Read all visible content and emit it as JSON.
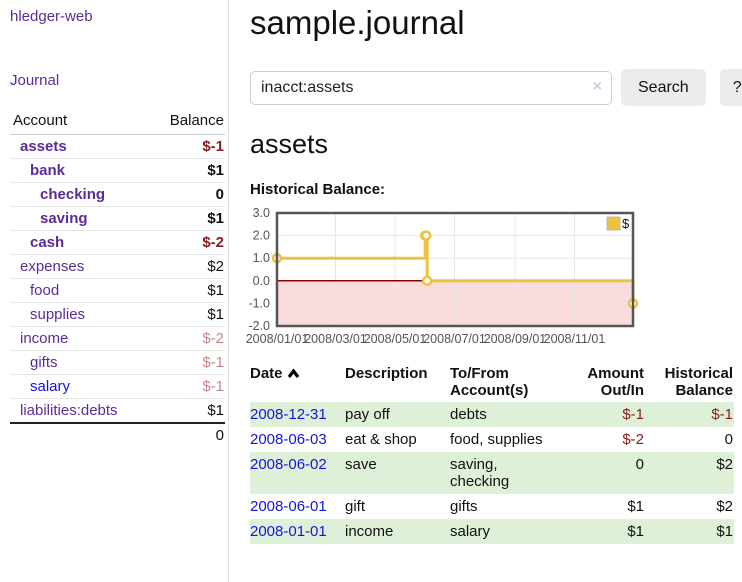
{
  "colors": {
    "purple_link": "#5b2c98",
    "blue_link": "#1414dd",
    "negative": "#8b1a1a",
    "negative_faded": "#c4848a",
    "row_stripe_green": "#dff0d8",
    "chart_line": "#edc240",
    "chart_negative_fill": "#fbdcdc",
    "zero_line": "#8b0000",
    "grid": "#e8e8e8",
    "chart_border": "#555555"
  },
  "sidebar": {
    "app_title": "hledger-web",
    "nav": {
      "journal": "Journal"
    },
    "table": {
      "headers": {
        "account": "Account",
        "balance": "Balance"
      },
      "rows": [
        {
          "name": "assets",
          "balance": "$-1"
        },
        {
          "name": "bank",
          "balance": "$1"
        },
        {
          "name": "checking",
          "balance": "0"
        },
        {
          "name": "saving",
          "balance": "$1"
        },
        {
          "name": "cash",
          "balance": "$-2"
        },
        {
          "name": "expenses",
          "balance": "$2"
        },
        {
          "name": "food",
          "balance": "$1"
        },
        {
          "name": "supplies",
          "balance": "$1"
        },
        {
          "name": "income",
          "balance": "$-2"
        },
        {
          "name": "gifts",
          "balance": "$-1"
        },
        {
          "name": "salary",
          "balance": "$-1"
        },
        {
          "name": "liabilities:debts",
          "balance": "$1"
        }
      ],
      "total": "0"
    }
  },
  "main": {
    "title": "sample.journal",
    "search": {
      "value": "inacct:assets",
      "clear_icon": "×",
      "button_label": "Search",
      "help_label": "?"
    },
    "account_heading": "assets",
    "chart_label": "Historical Balance:",
    "register": {
      "headers": {
        "date": "Date",
        "description": "Description",
        "accounts": "To/From Account(s)",
        "amount": "Amount Out/In",
        "balance": "Historical Balance"
      },
      "rows": [
        {
          "date": "2008-12-31",
          "description": "pay off",
          "accounts": "debts",
          "amount": "$-1",
          "balance": "$-1"
        },
        {
          "date": "2008-06-03",
          "description": "eat & shop",
          "accounts": "food, supplies",
          "amount": "$-2",
          "balance": "0"
        },
        {
          "date": "2008-06-02",
          "description": "save",
          "accounts": "saving, checking",
          "amount": "0",
          "balance": "$2"
        },
        {
          "date": "2008-06-01",
          "description": "gift",
          "accounts": "gifts",
          "amount": "$1",
          "balance": "$2"
        },
        {
          "date": "2008-01-01",
          "description": "income",
          "accounts": "salary",
          "amount": "$1",
          "balance": "$1"
        }
      ]
    }
  },
  "chart_data": {
    "type": "line",
    "step": true,
    "title": "Historical Balance:",
    "series": [
      {
        "name": "$",
        "color": "#edc240"
      }
    ],
    "points": [
      {
        "x": "2008-01-01",
        "y": 1
      },
      {
        "x": "2008-06-01",
        "y": 2
      },
      {
        "x": "2008-06-02",
        "y": 2
      },
      {
        "x": "2008-06-03",
        "y": 0
      },
      {
        "x": "2008-12-31",
        "y": -1
      }
    ],
    "xrange": [
      "2008-01-01",
      "2008-12-31"
    ],
    "ylim": [
      -2,
      3
    ],
    "y_ticks": [
      {
        "value": 3,
        "label": "3.0"
      },
      {
        "value": 2,
        "label": "2.0"
      },
      {
        "value": 1,
        "label": "1.0"
      },
      {
        "value": 0,
        "label": "0.0"
      },
      {
        "value": -1,
        "label": "-1.0"
      },
      {
        "value": -2,
        "label": "-2.0"
      }
    ],
    "x_ticks": [
      {
        "date": "2008-01-01",
        "label": "2008/01/01"
      },
      {
        "date": "2008-03-01",
        "label": "2008/03/01"
      },
      {
        "date": "2008-05-01",
        "label": "2008/05/01"
      },
      {
        "date": "2008-07-01",
        "label": "2008/07/01"
      },
      {
        "date": "2008-09-01",
        "label": "2008/09/01"
      },
      {
        "date": "2008-11-01",
        "label": "2008/11/01"
      }
    ],
    "legend": {
      "position": "top-right",
      "label": "$"
    },
    "grid": true,
    "negative_region_shaded": true
  }
}
